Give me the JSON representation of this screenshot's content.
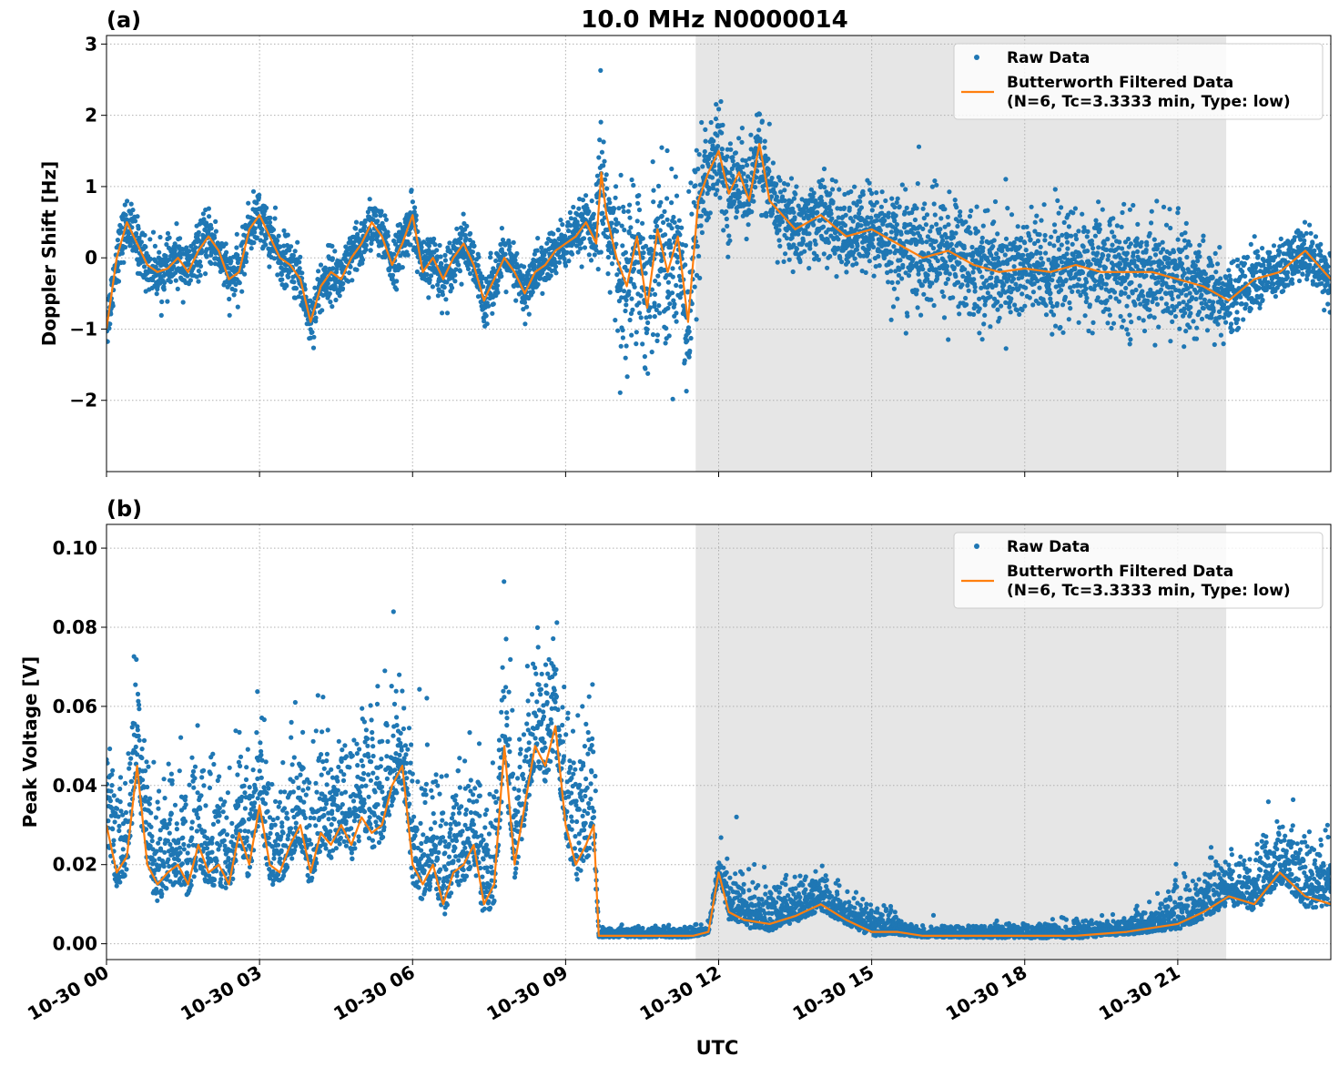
{
  "figure": {
    "title": "10.0 MHz N0000014",
    "xlabel": "UTC",
    "x_tick_labels": [
      "10-30 00",
      "10-30 03",
      "10-30 06",
      "10-30 09",
      "10-30 12",
      "10-30 15",
      "10-30 18",
      "10-30 21"
    ]
  },
  "colors": {
    "raw": "#1f77b4",
    "filtered": "#ff7f0e",
    "shade": "#e6e6e6",
    "grid": "#b0b0b0"
  },
  "chart_data": [
    {
      "type": "scatter",
      "panel_label": "(a)",
      "ylabel": "Doppler Shift [Hz]",
      "xlim_hours": [
        0,
        24
      ],
      "ylim": [
        -3.0,
        3.12
      ],
      "y_ticks": [
        -2,
        -1,
        0,
        1,
        2,
        3
      ],
      "y_tick_labels": [
        "−2",
        "−1",
        "0",
        "1",
        "2",
        "3"
      ],
      "grid": true,
      "legend_position": "top-right",
      "shaded_interval_hours": [
        11.55,
        21.95
      ],
      "series": [
        {
          "name": "Raw Data",
          "kind": "points",
          "noise_profile": [
            [
              0,
              0.2
            ],
            [
              9.6,
              0.2
            ],
            [
              9.6,
              0.55
            ],
            [
              11.5,
              0.7
            ],
            [
              12.0,
              0.35
            ],
            [
              14.5,
              0.3
            ],
            [
              15.8,
              0.45
            ],
            [
              21.5,
              0.4
            ],
            [
              22,
              0.25
            ],
            [
              24,
              0.2
            ]
          ]
        },
        {
          "name": "Butterworth Filtered Data\n(N=6, Tc=3.3333 min, Type: low)",
          "kind": "line",
          "x": [
            0,
            0.2,
            0.4,
            0.6,
            0.8,
            1.0,
            1.2,
            1.4,
            1.6,
            1.8,
            2.0,
            2.2,
            2.4,
            2.6,
            2.8,
            3.0,
            3.2,
            3.4,
            3.6,
            3.8,
            4.0,
            4.2,
            4.4,
            4.6,
            4.8,
            5.0,
            5.2,
            5.4,
            5.6,
            5.8,
            6.0,
            6.2,
            6.4,
            6.6,
            6.8,
            7.0,
            7.2,
            7.4,
            7.6,
            7.8,
            8.0,
            8.2,
            8.4,
            8.6,
            8.8,
            9.0,
            9.2,
            9.4,
            9.6,
            9.7,
            9.8,
            10.0,
            10.2,
            10.4,
            10.6,
            10.8,
            11.0,
            11.2,
            11.4,
            11.6,
            11.8,
            12.0,
            12.2,
            12.4,
            12.6,
            12.8,
            13.0,
            13.5,
            14.0,
            14.5,
            15.0,
            15.5,
            16.0,
            16.5,
            17.0,
            17.5,
            18.0,
            18.5,
            19.0,
            19.5,
            20.0,
            20.5,
            21.0,
            21.5,
            22.0,
            22.5,
            23.0,
            23.5,
            24.0
          ],
          "y": [
            -1.0,
            0.0,
            0.5,
            0.2,
            -0.1,
            -0.2,
            -0.15,
            0.0,
            -0.2,
            0.1,
            0.3,
            0.1,
            -0.3,
            -0.2,
            0.4,
            0.6,
            0.3,
            0.0,
            -0.1,
            -0.3,
            -0.9,
            -0.4,
            -0.2,
            -0.3,
            0.0,
            0.2,
            0.5,
            0.3,
            -0.1,
            0.2,
            0.6,
            -0.2,
            0.0,
            -0.3,
            0.0,
            0.2,
            -0.1,
            -0.6,
            -0.3,
            0.0,
            -0.2,
            -0.5,
            -0.2,
            -0.1,
            0.1,
            0.2,
            0.3,
            0.5,
            0.2,
            1.2,
            0.6,
            0.0,
            -0.4,
            0.3,
            -0.7,
            0.4,
            -0.2,
            0.3,
            -0.9,
            0.8,
            1.2,
            1.5,
            0.9,
            1.2,
            0.8,
            1.6,
            0.8,
            0.4,
            0.6,
            0.3,
            0.4,
            0.2,
            0.0,
            0.1,
            -0.1,
            -0.2,
            -0.15,
            -0.2,
            -0.1,
            -0.2,
            -0.2,
            -0.2,
            -0.3,
            -0.4,
            -0.6,
            -0.3,
            -0.2,
            0.1,
            -0.3
          ]
        }
      ]
    },
    {
      "type": "scatter",
      "panel_label": "(b)",
      "ylabel": "Peak Voltage [V]",
      "xlim_hours": [
        0,
        24
      ],
      "ylim": [
        -0.004,
        0.106
      ],
      "y_ticks": [
        0.0,
        0.02,
        0.04,
        0.06,
        0.08,
        0.1
      ],
      "y_tick_labels": [
        "0.00",
        "0.02",
        "0.04",
        "0.06",
        "0.08",
        "0.10"
      ],
      "grid": true,
      "legend_position": "top-right",
      "shaded_interval_hours": [
        11.55,
        21.95
      ],
      "series": [
        {
          "name": "Raw Data",
          "kind": "points",
          "noise_profile": [
            [
              0,
              0.012
            ],
            [
              9.6,
              0.014
            ],
            [
              9.6,
              0.001
            ],
            [
              11.9,
              0.001
            ],
            [
              12.1,
              0.006
            ],
            [
              15,
              0.003
            ],
            [
              16,
              0.001
            ],
            [
              20,
              0.002
            ],
            [
              21.5,
              0.005
            ],
            [
              24,
              0.008
            ]
          ]
        },
        {
          "name": "Butterworth Filtered Data\n(N=6, Tc=3.3333 min, Type: low)",
          "kind": "line",
          "x": [
            0,
            0.2,
            0.4,
            0.6,
            0.8,
            1.0,
            1.2,
            1.4,
            1.6,
            1.8,
            2.0,
            2.2,
            2.4,
            2.6,
            2.8,
            3.0,
            3.2,
            3.4,
            3.6,
            3.8,
            4.0,
            4.2,
            4.4,
            4.6,
            4.8,
            5.0,
            5.2,
            5.4,
            5.6,
            5.8,
            6.0,
            6.2,
            6.4,
            6.6,
            6.8,
            7.0,
            7.2,
            7.4,
            7.6,
            7.8,
            8.0,
            8.2,
            8.4,
            8.6,
            8.8,
            9.0,
            9.2,
            9.4,
            9.55,
            9.65,
            10.0,
            10.5,
            11.0,
            11.5,
            11.8,
            12.0,
            12.2,
            12.5,
            13.0,
            13.5,
            14.0,
            14.5,
            15.0,
            15.5,
            16.0,
            17.0,
            18.0,
            19.0,
            20.0,
            20.5,
            21.0,
            21.5,
            22.0,
            22.5,
            23.0,
            23.5,
            24.0
          ],
          "y": [
            0.03,
            0.018,
            0.022,
            0.045,
            0.02,
            0.015,
            0.018,
            0.02,
            0.015,
            0.025,
            0.018,
            0.02,
            0.015,
            0.028,
            0.02,
            0.035,
            0.02,
            0.018,
            0.025,
            0.03,
            0.018,
            0.028,
            0.025,
            0.03,
            0.025,
            0.032,
            0.028,
            0.03,
            0.04,
            0.045,
            0.02,
            0.015,
            0.02,
            0.01,
            0.018,
            0.02,
            0.025,
            0.01,
            0.015,
            0.05,
            0.02,
            0.035,
            0.05,
            0.045,
            0.055,
            0.03,
            0.02,
            0.025,
            0.03,
            0.002,
            0.002,
            0.002,
            0.002,
            0.002,
            0.003,
            0.018,
            0.008,
            0.006,
            0.005,
            0.007,
            0.01,
            0.006,
            0.003,
            0.003,
            0.002,
            0.002,
            0.002,
            0.002,
            0.003,
            0.004,
            0.005,
            0.008,
            0.012,
            0.01,
            0.018,
            0.012,
            0.01
          ]
        }
      ]
    }
  ]
}
